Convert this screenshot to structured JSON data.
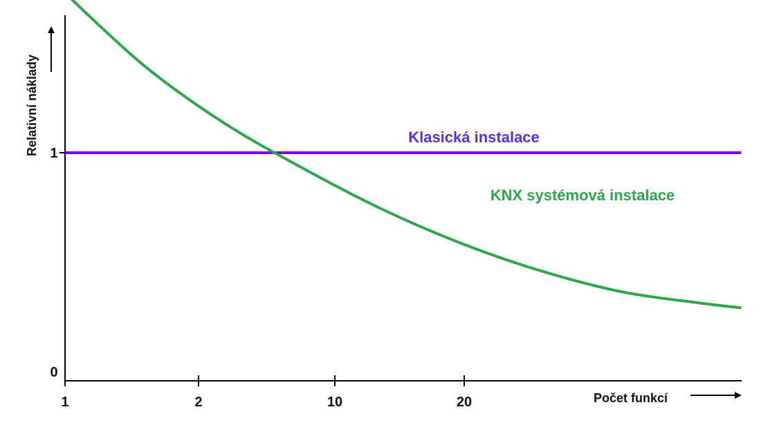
{
  "chart_data": {
    "type": "line",
    "xlabel": "Počet funkcí",
    "ylabel": "Relativní náklady",
    "x_ticks": [
      "1",
      "2",
      "10",
      "20"
    ],
    "y_ticks": [
      "0",
      "1"
    ],
    "ylim": [
      0,
      2.2
    ],
    "grid": false,
    "series": [
      {
        "name": "Klasická instalace",
        "color": "#8000e0",
        "x": [
          1,
          5.25
        ],
        "y": [
          1,
          1
        ]
      },
      {
        "name": "KNX systémová instalace",
        "color": "#2aa84a",
        "x": [
          1,
          1.5,
          2,
          2.5,
          3,
          3.5,
          4,
          4.5,
          5,
          5.25
        ],
        "y": [
          1.7,
          1.38,
          1.13,
          0.93,
          0.75,
          0.6,
          0.48,
          0.39,
          0.34,
          0.32
        ]
      }
    ]
  }
}
